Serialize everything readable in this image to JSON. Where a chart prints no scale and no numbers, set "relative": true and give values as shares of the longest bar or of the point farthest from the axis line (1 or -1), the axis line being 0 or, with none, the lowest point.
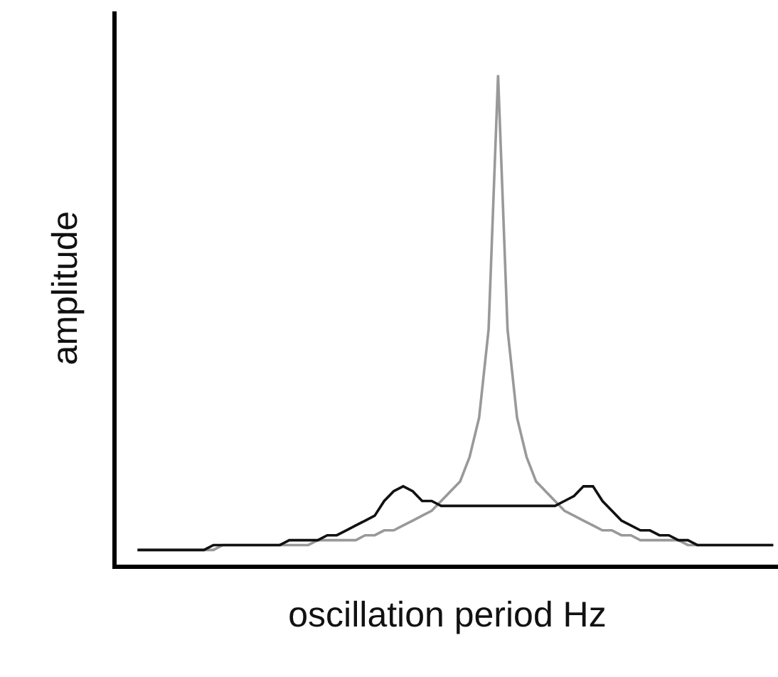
{
  "chart_data": {
    "type": "line",
    "relative": true,
    "xlabel": "oscillation period Hz",
    "ylabel": "amplitude",
    "marker": "none",
    "line_style": "solid",
    "categories": [
      null,
      null,
      null,
      null,
      null,
      null,
      null,
      null,
      null,
      null,
      null,
      null,
      null,
      null,
      null,
      null,
      null,
      null,
      null,
      null,
      null,
      null,
      null,
      null,
      null,
      null,
      null,
      null,
      null,
      null,
      null,
      null,
      null,
      null,
      null,
      null,
      null,
      null,
      null,
      null,
      null,
      null,
      null,
      null,
      null,
      null,
      null,
      null,
      null,
      null,
      null,
      null,
      null,
      null,
      null,
      null,
      null,
      null,
      null,
      null,
      null,
      null,
      null,
      null,
      null,
      null,
      null,
      null
    ],
    "series": [
      {
        "color": "#999999",
        "values": [
          0.03,
          0.03,
          0.03,
          0.03,
          0.03,
          0.03,
          0.03,
          0.03,
          0.03,
          0.04,
          0.04,
          0.04,
          0.04,
          0.04,
          0.04,
          0.04,
          0.04,
          0.04,
          0.04,
          0.05,
          0.05,
          0.05,
          0.05,
          0.05,
          0.06,
          0.06,
          0.07,
          0.07,
          0.08,
          0.09,
          0.1,
          0.11,
          0.13,
          0.15,
          0.17,
          0.22,
          0.3,
          0.48,
          1.0,
          0.48,
          0.3,
          0.22,
          0.17,
          0.15,
          0.13,
          0.11,
          0.1,
          0.09,
          0.08,
          0.07,
          0.07,
          0.06,
          0.06,
          0.05,
          0.05,
          0.05,
          0.05,
          0.05,
          0.04,
          0.04,
          0.04,
          0.04,
          0.04,
          0.04,
          0.04,
          0.04,
          0.04,
          0.04
        ]
      },
      {
        "color": "#111111",
        "values": [
          0.03,
          0.03,
          0.03,
          0.03,
          0.03,
          0.03,
          0.03,
          0.03,
          0.04,
          0.04,
          0.04,
          0.04,
          0.04,
          0.04,
          0.04,
          0.04,
          0.05,
          0.05,
          0.05,
          0.05,
          0.06,
          0.06,
          0.07,
          0.08,
          0.09,
          0.1,
          0.13,
          0.15,
          0.16,
          0.15,
          0.13,
          0.13,
          0.12,
          0.12,
          0.12,
          0.12,
          0.12,
          0.12,
          0.12,
          0.12,
          0.12,
          0.12,
          0.12,
          0.12,
          0.12,
          0.13,
          0.14,
          0.16,
          0.16,
          0.13,
          0.11,
          0.09,
          0.08,
          0.07,
          0.07,
          0.06,
          0.06,
          0.05,
          0.05,
          0.04,
          0.04,
          0.04,
          0.04,
          0.04,
          0.04,
          0.04,
          0.04,
          0.04
        ]
      }
    ]
  }
}
